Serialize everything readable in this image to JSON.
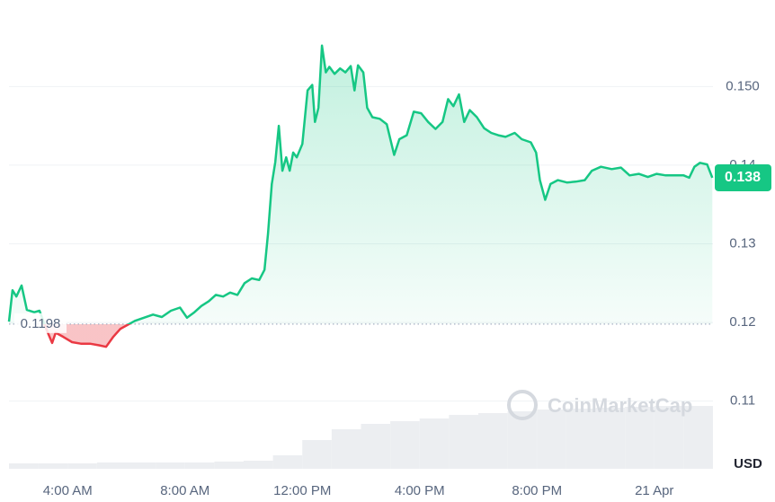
{
  "chart_data": {
    "type": "line",
    "currency": "USD",
    "watermark": "CoinMarketCap",
    "x": [
      2.0,
      2.12,
      2.25,
      2.43,
      2.61,
      2.86,
      3.04,
      3.29,
      3.47,
      3.59,
      3.84,
      4.15,
      4.45,
      4.76,
      5.07,
      5.31,
      5.56,
      5.8,
      6.05,
      6.29,
      6.6,
      6.91,
      7.21,
      7.52,
      7.83,
      8.07,
      8.32,
      8.56,
      8.81,
      9.05,
      9.3,
      9.54,
      9.79,
      10.03,
      10.28,
      10.53,
      10.71,
      10.83,
      10.96,
      11.08,
      11.2,
      11.32,
      11.45,
      11.57,
      11.69,
      11.81,
      12.0,
      12.18,
      12.34,
      12.43,
      12.55,
      12.67,
      12.8,
      12.92,
      13.1,
      13.29,
      13.47,
      13.65,
      13.78,
      13.9,
      14.08,
      14.21,
      14.39,
      14.64,
      14.88,
      15.13,
      15.31,
      15.56,
      15.8,
      16.05,
      16.29,
      16.54,
      16.78,
      16.97,
      17.15,
      17.34,
      17.52,
      17.71,
      17.95,
      18.2,
      18.44,
      18.68,
      18.93,
      19.24,
      19.48,
      19.79,
      19.97,
      20.1,
      20.28,
      20.46,
      20.71,
      21.02,
      21.32,
      21.63,
      21.87,
      22.18,
      22.55,
      22.86,
      23.16,
      23.47,
      23.78,
      24.08,
      24.39,
      24.7,
      25.0,
      25.19,
      25.37,
      25.56,
      25.8,
      25.98
    ],
    "values": [
      0.1201,
      0.1241,
      0.1233,
      0.1247,
      0.1216,
      0.1213,
      0.1215,
      0.119,
      0.1174,
      0.1187,
      0.1182,
      0.1175,
      0.1173,
      0.1173,
      0.1171,
      0.1169,
      0.1182,
      0.1192,
      0.1197,
      0.1202,
      0.1206,
      0.121,
      0.1207,
      0.1215,
      0.1219,
      0.1206,
      0.1213,
      0.1221,
      0.1227,
      0.1235,
      0.1233,
      0.1238,
      0.1235,
      0.125,
      0.1256,
      0.1254,
      0.1267,
      0.1313,
      0.1376,
      0.1404,
      0.145,
      0.1393,
      0.141,
      0.1393,
      0.1416,
      0.141,
      0.1427,
      0.1495,
      0.1502,
      0.1455,
      0.1473,
      0.1552,
      0.1518,
      0.1525,
      0.1516,
      0.1523,
      0.1518,
      0.1526,
      0.1495,
      0.1527,
      0.1518,
      0.1473,
      0.1461,
      0.1459,
      0.1452,
      0.1413,
      0.1433,
      0.1438,
      0.1468,
      0.1466,
      0.1455,
      0.1446,
      0.1455,
      0.1484,
      0.1475,
      0.149,
      0.1455,
      0.147,
      0.1461,
      0.1447,
      0.1441,
      0.1438,
      0.1436,
      0.1441,
      0.1433,
      0.1429,
      0.1416,
      0.1381,
      0.1356,
      0.1376,
      0.1381,
      0.1378,
      0.1379,
      0.1381,
      0.1393,
      0.1398,
      0.1395,
      0.1397,
      0.1387,
      0.1389,
      0.1385,
      0.1389,
      0.1387,
      0.1387,
      0.1387,
      0.1384,
      0.1398,
      0.1403,
      0.1401,
      0.1384
    ],
    "current_label": "0.138",
    "baseline": 0.1198,
    "up_color": "#16c784",
    "down_color": "#ea3943",
    "xlim": [
      2,
      26
    ],
    "xticks": [
      {
        "value": 4,
        "label": "4:00 AM"
      },
      {
        "value": 8,
        "label": "8:00 AM"
      },
      {
        "value": 12,
        "label": "12:00 PM"
      },
      {
        "value": 16,
        "label": "4:00 PM"
      },
      {
        "value": 20,
        "label": "8:00 PM"
      },
      {
        "value": 24,
        "label": "21 Apr"
      }
    ],
    "ylim": [
      0.1014,
      0.161
    ],
    "yticks": [
      0.11,
      0.12,
      0.13,
      0.14,
      {
        "value": 0.15,
        "label": "0.150"
      }
    ],
    "grid": true,
    "volume": {
      "x": [
        2,
        3,
        4,
        5,
        6,
        7,
        8,
        9,
        10,
        11,
        12,
        13,
        14,
        15,
        16,
        17,
        18,
        19,
        20,
        21,
        22,
        23,
        24,
        25
      ],
      "values": [
        6,
        6,
        6,
        7,
        7,
        7,
        7,
        8,
        9,
        15,
        32,
        44,
        50,
        53,
        56,
        60,
        62,
        64,
        66,
        67,
        68,
        69,
        70,
        70
      ],
      "color": "#eceef1"
    }
  }
}
